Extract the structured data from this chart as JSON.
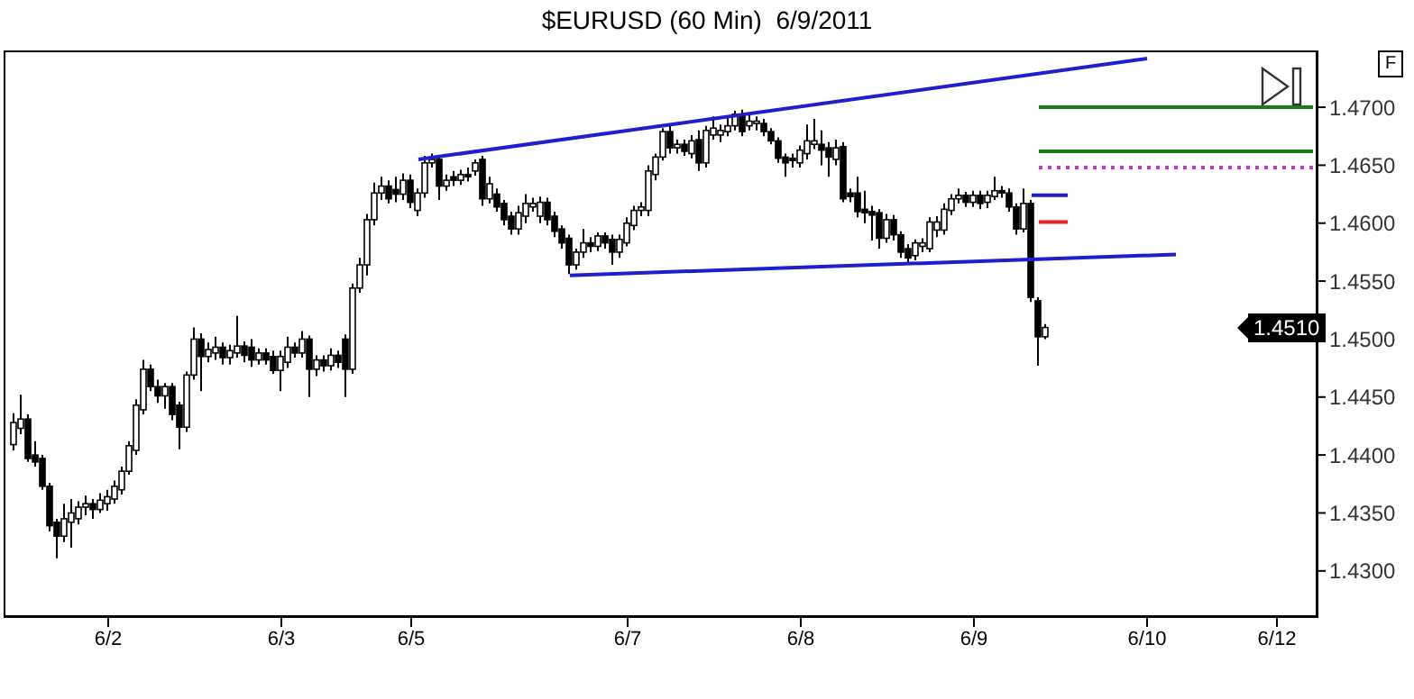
{
  "chart_data": {
    "type": "candlestick",
    "title": "$EURUSD (60 Min)  6/9/2011",
    "categories": [
      null,
      null,
      null,
      null,
      null,
      null,
      null,
      null,
      null,
      null,
      null,
      null,
      null,
      "6/2",
      null,
      null,
      null,
      null,
      null,
      null,
      null,
      null,
      null,
      null,
      null,
      null,
      null,
      null,
      null,
      null,
      null,
      null,
      null,
      null,
      null,
      null,
      null,
      "6/3",
      null,
      null,
      null,
      null,
      null,
      null,
      null,
      null,
      null,
      null,
      null,
      null,
      null,
      null,
      null,
      null,
      null,
      "6/5",
      null,
      null,
      null,
      null,
      null,
      null,
      null,
      null,
      null,
      null,
      null,
      null,
      null,
      null,
      null,
      null,
      null,
      null,
      null,
      null,
      null,
      null,
      null,
      null,
      null,
      null,
      null,
      null,
      null,
      "6/7",
      null,
      null,
      null,
      null,
      null,
      null,
      null,
      null,
      null,
      null,
      null,
      null,
      null,
      null,
      null,
      null,
      null,
      null,
      null,
      null,
      null,
      null,
      null,
      "6/8",
      null,
      null,
      null,
      null,
      null,
      null,
      null,
      null,
      null,
      null,
      null,
      null,
      null,
      null,
      null,
      null,
      null,
      null,
      null,
      null,
      null,
      null,
      null,
      "6/9",
      null,
      null,
      null,
      null,
      null,
      null,
      null,
      null,
      null,
      null,
      null,
      null,
      null,
      null,
      null,
      null,
      null,
      null,
      null,
      null,
      null,
      null,
      null,
      "6/10",
      null,
      null,
      null,
      null,
      null,
      null,
      null,
      null,
      null,
      null,
      null,
      null,
      null,
      null,
      null,
      null,
      null,
      "6/12",
      null,
      null,
      null,
      null,
      null
    ],
    "ohlc": [
      [
        1.4409,
        1.4436,
        1.4404,
        1.4428
      ],
      [
        1.4423,
        1.4452,
        1.4418,
        1.4431
      ],
      [
        1.4431,
        1.4435,
        1.4394,
        1.4397
      ],
      [
        1.44,
        1.4412,
        1.439,
        1.4394
      ],
      [
        1.4397,
        1.44,
        1.437,
        1.4373
      ],
      [
        1.4373,
        1.4376,
        1.4334,
        1.4339
      ],
      [
        1.4342,
        1.4345,
        1.4311,
        1.433
      ],
      [
        1.433,
        1.4358,
        1.4325,
        1.4345
      ],
      [
        1.4342,
        1.4362,
        1.432,
        1.435
      ],
      [
        1.4345,
        1.436,
        1.434,
        1.4355
      ],
      [
        1.4355,
        1.4365,
        1.4348,
        1.4358
      ],
      [
        1.4358,
        1.4362,
        1.4345,
        1.4353
      ],
      [
        1.4353,
        1.4367,
        1.435,
        1.4361
      ],
      [
        1.4358,
        1.437,
        1.4352,
        1.4364
      ],
      [
        1.4362,
        1.4378,
        1.4358,
        1.4373
      ],
      [
        1.437,
        1.439,
        1.4366,
        1.4386
      ],
      [
        1.4386,
        1.4412,
        1.4383,
        1.4408
      ],
      [
        1.4404,
        1.4448,
        1.44,
        1.4443
      ],
      [
        1.4439,
        1.4482,
        1.4435,
        1.4474
      ],
      [
        1.4474,
        1.4478,
        1.4455,
        1.4459
      ],
      [
        1.4459,
        1.4465,
        1.4445,
        1.4451
      ],
      [
        1.4451,
        1.4462,
        1.444,
        1.4459
      ],
      [
        1.4459,
        1.4462,
        1.443,
        1.4435
      ],
      [
        1.4443,
        1.4446,
        1.4405,
        1.4424
      ],
      [
        1.4424,
        1.4472,
        1.442,
        1.4469
      ],
      [
        1.4469,
        1.451,
        1.4465,
        1.45
      ],
      [
        1.45,
        1.4505,
        1.4455,
        1.4485
      ],
      [
        1.4485,
        1.4497,
        1.448,
        1.4491
      ],
      [
        1.4488,
        1.4502,
        1.4482,
        1.4493
      ],
      [
        1.4493,
        1.4497,
        1.4478,
        1.4484
      ],
      [
        1.4484,
        1.4495,
        1.4478,
        1.449
      ],
      [
        1.4488,
        1.452,
        1.4484,
        1.4494
      ],
      [
        1.4494,
        1.4498,
        1.448,
        1.4486
      ],
      [
        1.4493,
        1.45,
        1.4476,
        1.4482
      ],
      [
        1.4482,
        1.4492,
        1.4478,
        1.4488
      ],
      [
        1.4488,
        1.4492,
        1.4478,
        1.4482
      ],
      [
        1.4485,
        1.449,
        1.447,
        1.4473
      ],
      [
        1.4473,
        1.449,
        1.4455,
        1.4485
      ],
      [
        1.448,
        1.4502,
        1.4475,
        1.4493
      ],
      [
        1.4493,
        1.4497,
        1.4484,
        1.4488
      ],
      [
        1.4488,
        1.4507,
        1.4484,
        1.45
      ],
      [
        1.45,
        1.4503,
        1.445,
        1.4474
      ],
      [
        1.4474,
        1.4486,
        1.4468,
        1.4482
      ],
      [
        1.4482,
        1.4486,
        1.4472,
        1.4477
      ],
      [
        1.4477,
        1.4492,
        1.4473,
        1.4486
      ],
      [
        1.4486,
        1.449,
        1.4475,
        1.448
      ],
      [
        1.45,
        1.4504,
        1.445,
        1.4474
      ],
      [
        1.4474,
        1.4548,
        1.447,
        1.4544
      ],
      [
        1.4544,
        1.457,
        1.454,
        1.4564
      ],
      [
        1.4564,
        1.4608,
        1.4555,
        1.4603
      ],
      [
        1.4603,
        1.4635,
        1.4598,
        1.4626
      ],
      [
        1.4626,
        1.464,
        1.462,
        1.4632
      ],
      [
        1.4632,
        1.4637,
        1.4617,
        1.4621
      ],
      [
        1.4629,
        1.464,
        1.4618,
        1.4625
      ],
      [
        1.4625,
        1.4643,
        1.462,
        1.4637
      ],
      [
        1.4637,
        1.4642,
        1.4613,
        1.4618
      ],
      [
        1.4611,
        1.463,
        1.4606,
        1.4626
      ],
      [
        1.4626,
        1.4658,
        1.4622,
        1.4652
      ],
      [
        1.4652,
        1.466,
        1.4648,
        1.4655
      ],
      [
        1.4655,
        1.4658,
        1.462,
        1.4632
      ],
      [
        1.4632,
        1.4642,
        1.4628,
        1.4637
      ],
      [
        1.464,
        1.4645,
        1.4632,
        1.4637
      ],
      [
        1.4637,
        1.4646,
        1.4633,
        1.4642
      ],
      [
        1.4642,
        1.4648,
        1.4636,
        1.464
      ],
      [
        1.4645,
        1.4655,
        1.4641,
        1.4652
      ],
      [
        1.4655,
        1.4658,
        1.4615,
        1.4621
      ],
      [
        1.4621,
        1.464,
        1.4617,
        1.4634
      ],
      [
        1.4625,
        1.463,
        1.461,
        1.4614
      ],
      [
        1.4617,
        1.462,
        1.4598,
        1.4603
      ],
      [
        1.4606,
        1.461,
        1.459,
        1.4595
      ],
      [
        1.4595,
        1.4615,
        1.459,
        1.4609
      ],
      [
        1.4606,
        1.4625,
        1.46,
        1.4617
      ],
      [
        1.4614,
        1.4622,
        1.461,
        1.4617
      ],
      [
        1.4606,
        1.4623,
        1.46,
        1.4618
      ],
      [
        1.4618,
        1.4622,
        1.4598,
        1.4603
      ],
      [
        1.4606,
        1.461,
        1.4588,
        1.4593
      ],
      [
        1.4595,
        1.4598,
        1.4578,
        1.4583
      ],
      [
        1.4587,
        1.459,
        1.4556,
        1.4564
      ],
      [
        1.4564,
        1.4578,
        1.456,
        1.4575
      ],
      [
        1.4575,
        1.4595,
        1.457,
        1.4583
      ],
      [
        1.4583,
        1.4588,
        1.4575,
        1.458
      ],
      [
        1.458,
        1.4592,
        1.4576,
        1.4589
      ],
      [
        1.4589,
        1.4592,
        1.4578,
        1.4583
      ],
      [
        1.4586,
        1.459,
        1.4564,
        1.4575
      ],
      [
        1.4575,
        1.459,
        1.457,
        1.4586
      ],
      [
        1.4583,
        1.4605,
        1.458,
        1.46
      ],
      [
        1.4598,
        1.4615,
        1.4594,
        1.4611
      ],
      [
        1.4611,
        1.4618,
        1.4606,
        1.4614
      ],
      [
        1.4611,
        1.465,
        1.4606,
        1.4645
      ],
      [
        1.4642,
        1.466,
        1.4637,
        1.4657
      ],
      [
        1.4657,
        1.4682,
        1.4654,
        1.4679
      ],
      [
        1.4679,
        1.4684,
        1.466,
        1.4665
      ],
      [
        1.4665,
        1.4672,
        1.466,
        1.4668
      ],
      [
        1.4668,
        1.4672,
        1.4658,
        1.4662
      ],
      [
        1.466,
        1.4676,
        1.4656,
        1.4671
      ],
      [
        1.4672,
        1.468,
        1.4645,
        1.4652
      ],
      [
        1.4652,
        1.4684,
        1.4648,
        1.468
      ],
      [
        1.4676,
        1.4692,
        1.4672,
        1.4682
      ],
      [
        1.4676,
        1.4685,
        1.467,
        1.468
      ],
      [
        1.4679,
        1.4693,
        1.4675,
        1.4684
      ],
      [
        1.4684,
        1.4697,
        1.468,
        1.4694
      ],
      [
        1.4694,
        1.4698,
        1.4675,
        1.4679
      ],
      [
        1.4684,
        1.4695,
        1.468,
        1.4688
      ],
      [
        1.4686,
        1.4692,
        1.468,
        1.4688
      ],
      [
        1.4686,
        1.469,
        1.4675,
        1.4679
      ],
      [
        1.4679,
        1.4682,
        1.4668,
        1.4671
      ],
      [
        1.4671,
        1.4674,
        1.4652,
        1.4656
      ],
      [
        1.4657,
        1.466,
        1.464,
        1.4652
      ],
      [
        1.4656,
        1.466,
        1.4648,
        1.4654
      ],
      [
        1.4652,
        1.4667,
        1.4648,
        1.4663
      ],
      [
        1.466,
        1.4685,
        1.4655,
        1.4671
      ],
      [
        1.4668,
        1.469,
        1.4664,
        1.4671
      ],
      [
        1.4668,
        1.468,
        1.465,
        1.4663
      ],
      [
        1.4665,
        1.467,
        1.464,
        1.4657
      ],
      [
        1.4655,
        1.4672,
        1.465,
        1.4665
      ],
      [
        1.4666,
        1.467,
        1.4618,
        1.4621
      ],
      [
        1.4626,
        1.463,
        1.4618,
        1.4623
      ],
      [
        1.4626,
        1.464,
        1.4605,
        1.461
      ],
      [
        1.4612,
        1.4628,
        1.46,
        1.4609
      ],
      [
        1.461,
        1.4615,
        1.4585,
        1.4607
      ],
      [
        1.4609,
        1.4612,
        1.4578,
        1.4587
      ],
      [
        1.4587,
        1.4608,
        1.4583,
        1.4603
      ],
      [
        1.4603,
        1.4607,
        1.4585,
        1.459
      ],
      [
        1.459,
        1.4593,
        1.457,
        1.4575
      ],
      [
        1.4578,
        1.4582,
        1.4566,
        1.457
      ],
      [
        1.4572,
        1.4586,
        1.4568,
        1.4583
      ],
      [
        1.458,
        1.4587,
        1.4575,
        1.4583
      ],
      [
        1.4578,
        1.4605,
        1.4575,
        1.4601
      ],
      [
        1.4594,
        1.4606,
        1.4588,
        1.4601
      ],
      [
        1.4594,
        1.4617,
        1.459,
        1.4612
      ],
      [
        1.4611,
        1.4625,
        1.4607,
        1.4621
      ],
      [
        1.4621,
        1.463,
        1.4617,
        1.4624
      ],
      [
        1.4624,
        1.4627,
        1.4614,
        1.4618
      ],
      [
        1.4618,
        1.4628,
        1.4614,
        1.4624
      ],
      [
        1.4624,
        1.4628,
        1.4612,
        1.4617
      ],
      [
        1.4618,
        1.4628,
        1.4613,
        1.4624
      ],
      [
        1.4623,
        1.464,
        1.462,
        1.4628
      ],
      [
        1.4628,
        1.4632,
        1.4622,
        1.4626
      ],
      [
        1.4626,
        1.463,
        1.461,
        1.4614
      ],
      [
        1.4614,
        1.4617,
        1.459,
        1.4595
      ],
      [
        1.4595,
        1.463,
        1.4592,
        1.4617
      ],
      [
        1.4617,
        1.462,
        1.4532,
        1.4536
      ],
      [
        1.4533,
        1.4536,
        1.4477,
        1.4502
      ],
      [
        1.4502,
        1.4513,
        1.45,
        1.451
      ],
      null,
      null,
      null,
      null,
      null,
      null,
      null,
      null,
      null,
      null,
      null,
      null,
      null,
      null,
      null,
      null,
      null,
      null,
      null,
      null,
      null,
      null,
      null,
      null,
      null,
      null,
      null,
      null,
      null,
      null,
      null,
      null,
      null,
      null,
      null,
      null,
      null
    ],
    "series": [
      {
        "type": "line",
        "color": "#1f1fd0",
        "values": [
          null,
          null,
          null,
          null,
          null,
          null,
          null,
          null,
          null,
          null,
          null,
          null,
          null,
          null,
          null,
          null,
          null,
          null,
          null,
          null,
          null,
          null,
          null,
          null,
          null,
          null,
          null,
          null,
          null,
          null,
          null,
          null,
          null,
          null,
          null,
          null,
          null,
          null,
          null,
          null,
          null,
          null,
          null,
          null,
          null,
          null,
          null,
          null,
          null,
          null,
          null,
          null,
          null,
          null,
          null,
          null,
          1.4655,
          null,
          null,
          null,
          null,
          null,
          null,
          null,
          null,
          null,
          null,
          null,
          null,
          null,
          null,
          null,
          null,
          null,
          null,
          null,
          null,
          null,
          null,
          null,
          null,
          null,
          null,
          null,
          null,
          null,
          null,
          null,
          null,
          null,
          null,
          null,
          null,
          null,
          null,
          null,
          null,
          null,
          null,
          null,
          null,
          null,
          null,
          null,
          null,
          null,
          null,
          null,
          null,
          null,
          null,
          null,
          null,
          null,
          null,
          null,
          null,
          null,
          null,
          null,
          null,
          null,
          null,
          null,
          null,
          null,
          null,
          null,
          null,
          null,
          null,
          null,
          null,
          null,
          null,
          null,
          null,
          null,
          null,
          null,
          null,
          null,
          null,
          null,
          null,
          null,
          null,
          null,
          null,
          null,
          null,
          null,
          null,
          null,
          null,
          null,
          null,
          1.4742,
          null,
          null,
          null,
          null,
          null,
          null,
          null,
          null,
          null,
          null,
          null,
          null,
          null,
          null,
          null,
          null,
          null,
          null,
          null,
          null,
          null,
          null,
          null
        ]
      },
      {
        "type": "line",
        "color": "#1f1fd0",
        "values": [
          null,
          null,
          null,
          null,
          null,
          null,
          null,
          null,
          null,
          null,
          null,
          null,
          null,
          null,
          null,
          null,
          null,
          null,
          null,
          null,
          null,
          null,
          null,
          null,
          null,
          null,
          null,
          null,
          null,
          null,
          null,
          null,
          null,
          null,
          null,
          null,
          null,
          null,
          null,
          null,
          null,
          null,
          null,
          null,
          null,
          null,
          null,
          null,
          null,
          null,
          null,
          null,
          null,
          null,
          null,
          null,
          null,
          null,
          null,
          null,
          null,
          null,
          null,
          null,
          null,
          null,
          null,
          null,
          null,
          null,
          null,
          null,
          null,
          null,
          null,
          null,
          null,
          1.4555,
          null,
          null,
          null,
          null,
          null,
          null,
          null,
          null,
          null,
          null,
          null,
          null,
          null,
          null,
          null,
          null,
          null,
          null,
          null,
          null,
          null,
          null,
          null,
          null,
          null,
          null,
          null,
          null,
          null,
          null,
          null,
          null,
          null,
          null,
          null,
          null,
          null,
          null,
          null,
          null,
          null,
          null,
          null,
          null,
          null,
          null,
          null,
          null,
          null,
          null,
          null,
          null,
          null,
          null,
          null,
          null,
          null,
          null,
          null,
          null,
          null,
          null,
          null,
          null,
          null,
          null,
          null,
          null,
          null,
          null,
          null,
          null,
          null,
          null,
          null,
          null,
          null,
          null,
          null,
          null,
          null,
          null,
          null,
          1.4573,
          null,
          null,
          null,
          null,
          null,
          null,
          null,
          null,
          null,
          null,
          null,
          null,
          null,
          null,
          null,
          null,
          null,
          null,
          null
        ]
      },
      {
        "type": "line",
        "color": "#1a7a1a",
        "values": [
          null,
          null,
          null,
          null,
          null,
          null,
          null,
          null,
          null,
          null,
          null,
          null,
          null,
          null,
          null,
          null,
          null,
          null,
          null,
          null,
          null,
          null,
          null,
          null,
          null,
          null,
          null,
          null,
          null,
          null,
          null,
          null,
          null,
          null,
          null,
          null,
          null,
          null,
          null,
          null,
          null,
          null,
          null,
          null,
          null,
          null,
          null,
          null,
          null,
          null,
          null,
          null,
          null,
          null,
          null,
          null,
          null,
          null,
          null,
          null,
          null,
          null,
          null,
          null,
          null,
          null,
          null,
          null,
          null,
          null,
          null,
          null,
          null,
          null,
          null,
          null,
          null,
          null,
          null,
          null,
          null,
          null,
          null,
          null,
          null,
          null,
          null,
          null,
          null,
          null,
          null,
          null,
          null,
          null,
          null,
          null,
          null,
          null,
          null,
          null,
          null,
          null,
          null,
          null,
          null,
          null,
          null,
          null,
          null,
          null,
          null,
          null,
          null,
          null,
          null,
          null,
          null,
          null,
          null,
          null,
          null,
          null,
          null,
          null,
          null,
          null,
          null,
          null,
          null,
          null,
          null,
          null,
          null,
          null,
          null,
          null,
          null,
          null,
          null,
          null,
          null,
          null,
          1.47,
          null,
          null,
          null,
          null,
          null,
          null,
          null,
          null,
          null,
          null,
          null,
          null,
          null,
          null,
          null,
          null,
          null,
          null,
          null,
          null,
          null,
          null,
          null,
          null,
          null,
          null,
          null,
          null,
          null,
          null,
          null,
          null,
          null,
          null,
          null,
          null,
          null,
          1.47
        ]
      },
      {
        "type": "line",
        "color": "#1a7a1a",
        "values": [
          null,
          null,
          null,
          null,
          null,
          null,
          null,
          null,
          null,
          null,
          null,
          null,
          null,
          null,
          null,
          null,
          null,
          null,
          null,
          null,
          null,
          null,
          null,
          null,
          null,
          null,
          null,
          null,
          null,
          null,
          null,
          null,
          null,
          null,
          null,
          null,
          null,
          null,
          null,
          null,
          null,
          null,
          null,
          null,
          null,
          null,
          null,
          null,
          null,
          null,
          null,
          null,
          null,
          null,
          null,
          null,
          null,
          null,
          null,
          null,
          null,
          null,
          null,
          null,
          null,
          null,
          null,
          null,
          null,
          null,
          null,
          null,
          null,
          null,
          null,
          null,
          null,
          null,
          null,
          null,
          null,
          null,
          null,
          null,
          null,
          null,
          null,
          null,
          null,
          null,
          null,
          null,
          null,
          null,
          null,
          null,
          null,
          null,
          null,
          null,
          null,
          null,
          null,
          null,
          null,
          null,
          null,
          null,
          null,
          null,
          null,
          null,
          null,
          null,
          null,
          null,
          null,
          null,
          null,
          null,
          null,
          null,
          null,
          null,
          null,
          null,
          null,
          null,
          null,
          null,
          null,
          null,
          null,
          null,
          null,
          null,
          null,
          null,
          null,
          null,
          null,
          null,
          1.4662,
          null,
          null,
          null,
          null,
          null,
          null,
          null,
          null,
          null,
          null,
          null,
          null,
          null,
          null,
          null,
          null,
          null,
          null,
          null,
          null,
          null,
          null,
          null,
          null,
          null,
          null,
          null,
          null,
          null,
          null,
          null,
          null,
          null,
          null,
          null,
          null,
          null,
          1.4662
        ]
      },
      {
        "type": "line",
        "color": "#cc33cc",
        "line_style": "dotted",
        "values": [
          null,
          null,
          null,
          null,
          null,
          null,
          null,
          null,
          null,
          null,
          null,
          null,
          null,
          null,
          null,
          null,
          null,
          null,
          null,
          null,
          null,
          null,
          null,
          null,
          null,
          null,
          null,
          null,
          null,
          null,
          null,
          null,
          null,
          null,
          null,
          null,
          null,
          null,
          null,
          null,
          null,
          null,
          null,
          null,
          null,
          null,
          null,
          null,
          null,
          null,
          null,
          null,
          null,
          null,
          null,
          null,
          null,
          null,
          null,
          null,
          null,
          null,
          null,
          null,
          null,
          null,
          null,
          null,
          null,
          null,
          null,
          null,
          null,
          null,
          null,
          null,
          null,
          null,
          null,
          null,
          null,
          null,
          null,
          null,
          null,
          null,
          null,
          null,
          null,
          null,
          null,
          null,
          null,
          null,
          null,
          null,
          null,
          null,
          null,
          null,
          null,
          null,
          null,
          null,
          null,
          null,
          null,
          null,
          null,
          null,
          null,
          null,
          null,
          null,
          null,
          null,
          null,
          null,
          null,
          null,
          null,
          null,
          null,
          null,
          null,
          null,
          null,
          null,
          null,
          null,
          null,
          null,
          null,
          null,
          null,
          null,
          null,
          null,
          null,
          null,
          null,
          null,
          1.4648,
          null,
          null,
          null,
          null,
          null,
          null,
          null,
          null,
          null,
          null,
          null,
          null,
          null,
          null,
          null,
          null,
          null,
          null,
          null,
          null,
          null,
          null,
          null,
          null,
          null,
          null,
          null,
          null,
          null,
          null,
          null,
          null,
          null,
          null,
          null,
          null,
          null,
          1.4648
        ]
      },
      {
        "type": "line",
        "color": "#1f1fd0",
        "values": [
          null,
          null,
          null,
          null,
          null,
          null,
          null,
          null,
          null,
          null,
          null,
          null,
          null,
          null,
          null,
          null,
          null,
          null,
          null,
          null,
          null,
          null,
          null,
          null,
          null,
          null,
          null,
          null,
          null,
          null,
          null,
          null,
          null,
          null,
          null,
          null,
          null,
          null,
          null,
          null,
          null,
          null,
          null,
          null,
          null,
          null,
          null,
          null,
          null,
          null,
          null,
          null,
          null,
          null,
          null,
          null,
          null,
          null,
          null,
          null,
          null,
          null,
          null,
          null,
          null,
          null,
          null,
          null,
          null,
          null,
          null,
          null,
          null,
          null,
          null,
          null,
          null,
          null,
          null,
          null,
          null,
          null,
          null,
          null,
          null,
          null,
          null,
          null,
          null,
          null,
          null,
          null,
          null,
          null,
          null,
          null,
          null,
          null,
          null,
          null,
          null,
          null,
          null,
          null,
          null,
          null,
          null,
          null,
          null,
          null,
          null,
          null,
          null,
          null,
          null,
          null,
          null,
          null,
          null,
          null,
          null,
          null,
          null,
          null,
          null,
          null,
          null,
          null,
          null,
          null,
          null,
          null,
          null,
          null,
          null,
          null,
          null,
          null,
          null,
          null,
          null,
          1.4624,
          null,
          null,
          null,
          null,
          1.4624,
          null,
          null,
          null,
          null,
          null,
          null,
          null,
          null,
          null,
          null,
          null,
          null,
          null,
          null,
          null,
          null,
          null,
          null,
          null,
          null,
          null,
          null,
          null,
          null,
          null,
          null,
          null,
          null,
          null,
          null,
          null,
          null,
          null,
          null
        ]
      },
      {
        "type": "line",
        "color": "#ee2222",
        "values": [
          null,
          null,
          null,
          null,
          null,
          null,
          null,
          null,
          null,
          null,
          null,
          null,
          null,
          null,
          null,
          null,
          null,
          null,
          null,
          null,
          null,
          null,
          null,
          null,
          null,
          null,
          null,
          null,
          null,
          null,
          null,
          null,
          null,
          null,
          null,
          null,
          null,
          null,
          null,
          null,
          null,
          null,
          null,
          null,
          null,
          null,
          null,
          null,
          null,
          null,
          null,
          null,
          null,
          null,
          null,
          null,
          null,
          null,
          null,
          null,
          null,
          null,
          null,
          null,
          null,
          null,
          null,
          null,
          null,
          null,
          null,
          null,
          null,
          null,
          null,
          null,
          null,
          null,
          null,
          null,
          null,
          null,
          null,
          null,
          null,
          null,
          null,
          null,
          null,
          null,
          null,
          null,
          null,
          null,
          null,
          null,
          null,
          null,
          null,
          null,
          null,
          null,
          null,
          null,
          null,
          null,
          null,
          null,
          null,
          null,
          null,
          null,
          null,
          null,
          null,
          null,
          null,
          null,
          null,
          null,
          null,
          null,
          null,
          null,
          null,
          null,
          null,
          null,
          null,
          null,
          null,
          null,
          null,
          null,
          null,
          null,
          null,
          null,
          null,
          null,
          null,
          null,
          1.4601,
          null,
          null,
          null,
          1.4601,
          null,
          null,
          null,
          null,
          null,
          null,
          null,
          null,
          null,
          null,
          null,
          null,
          null,
          null,
          null,
          null,
          null,
          null,
          null,
          null,
          null,
          null,
          null,
          null,
          null,
          null,
          null,
          null,
          null,
          null,
          null,
          null,
          null,
          null
        ]
      }
    ],
    "annotations": [
      {
        "text": "1.4510",
        "y": 1.451
      },
      "F"
    ],
    "ylim": [
      1.4261,
      1.4749
    ],
    "yticks": [
      {
        "value": 1.43,
        "label": "1.4300"
      },
      {
        "value": 1.435,
        "label": "1.4350"
      },
      {
        "value": 1.44,
        "label": "1.4400"
      },
      {
        "value": 1.445,
        "label": "1.4450"
      },
      {
        "value": 1.45,
        "label": "1.4500"
      },
      {
        "value": 1.455,
        "label": "1.4550"
      },
      {
        "value": 1.46,
        "label": "1.4600"
      },
      {
        "value": 1.465,
        "label": "1.4650"
      },
      {
        "value": 1.47,
        "label": "1.4700"
      }
    ]
  }
}
